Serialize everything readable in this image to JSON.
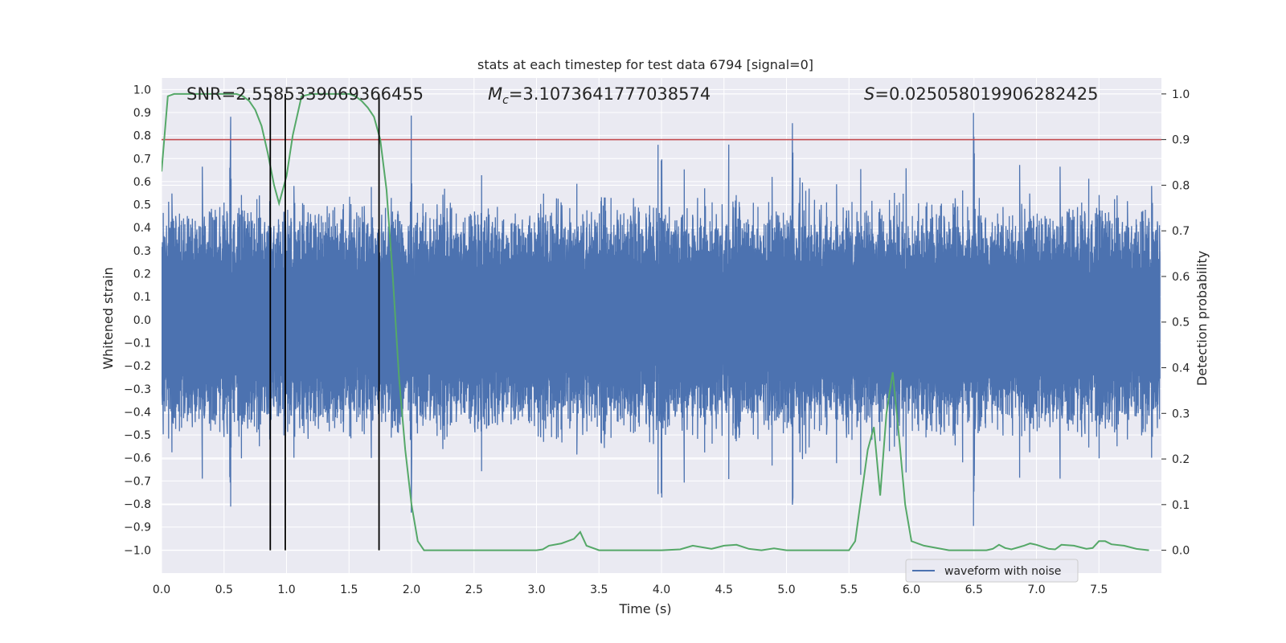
{
  "chart_data": {
    "type": "line",
    "title": "stats at each timestep for test data 6794 [signal=0]",
    "xlabel": "Time (s)",
    "ylabel": "Whitened strain",
    "ylabel_right": "Detection probability",
    "xlim": [
      0,
      8
    ],
    "ylim": [
      -1.1,
      1.05
    ],
    "ylim_right": [
      -0.05,
      1.035
    ],
    "x_ticks": [
      0.0,
      0.5,
      1.0,
      1.5,
      2.0,
      2.5,
      3.0,
      3.5,
      4.0,
      4.5,
      5.0,
      5.5,
      6.0,
      6.5,
      7.0,
      7.5
    ],
    "x_tick_labels": [
      "0.0",
      "0.5",
      "1.0",
      "1.5",
      "2.0",
      "2.5",
      "3.0",
      "3.5",
      "4.0",
      "4.5",
      "5.0",
      "5.5",
      "6.0",
      "6.5",
      "7.0",
      "7.5"
    ],
    "y_ticks": [
      1.0,
      0.9,
      0.8,
      0.7,
      0.6,
      0.5,
      0.4,
      0.3,
      0.2,
      0.1,
      0.0,
      -0.1,
      -0.2,
      -0.3,
      -0.4,
      -0.5,
      -0.6,
      -0.7,
      -0.8,
      -0.9,
      -1.0
    ],
    "y_tick_labels": [
      "1.0",
      "0.9",
      "0.8",
      "0.7",
      "0.6",
      "0.5",
      "0.4",
      "0.3",
      "0.2",
      "0.1",
      "0.0",
      "−0.1",
      "−0.2",
      "−0.3",
      "−0.4",
      "−0.5",
      "−0.6",
      "−0.7",
      "−0.8",
      "−0.9",
      "−1.0"
    ],
    "y_ticks_right": [
      1.0,
      0.9,
      0.8,
      0.7,
      0.6,
      0.5,
      0.4,
      0.3,
      0.2,
      0.1,
      0.0
    ],
    "y_tick_labels_right": [
      "1.0",
      "0.9",
      "0.8",
      "0.7",
      "0.6",
      "0.5",
      "0.4",
      "0.3",
      "0.2",
      "0.1",
      "0.0"
    ],
    "annotations": {
      "snr": "SNR=2.5585339069366455",
      "mc_symbol": "M",
      "mc_subscript": "c",
      "mc_value": "=3.1073641777038574",
      "s_symbol": "S",
      "s_value": "=0.025058019906282425"
    },
    "threshold_right": 0.9,
    "vertical_lines_x": [
      0.87,
      0.99,
      1.74
    ],
    "legend": [
      "waveform with noise"
    ],
    "legend_position": "lower-right",
    "colors": {
      "waveform": "#4c72b0",
      "probability": "#55a868",
      "threshold": "#c44e52",
      "markers": "#000000",
      "plot_bg": "#eaeaf2",
      "grid": "#ffffff"
    },
    "waveform_envelope": {
      "core_amplitude": 0.3,
      "typical_peak": 0.55,
      "max_peak_near_t": [
        0.55,
        2.0,
        4.0,
        5.05,
        6.5
      ],
      "max_peak_value": 0.93,
      "min_trough_value": -0.97
    },
    "probability_series": {
      "name": "Detection probability",
      "x": [
        0.0,
        0.05,
        0.1,
        0.2,
        0.3,
        0.4,
        0.5,
        0.6,
        0.65,
        0.7,
        0.75,
        0.8,
        0.85,
        0.9,
        0.94,
        1.0,
        1.05,
        1.12,
        1.2,
        1.3,
        1.4,
        1.5,
        1.55,
        1.6,
        1.65,
        1.7,
        1.75,
        1.8,
        1.85,
        1.9,
        1.95,
        2.0,
        2.05,
        2.1,
        2.2,
        2.5,
        2.8,
        3.0,
        3.05,
        3.1,
        3.2,
        3.3,
        3.35,
        3.4,
        3.5,
        3.7,
        4.0,
        4.15,
        4.25,
        4.4,
        4.5,
        4.6,
        4.7,
        4.8,
        4.9,
        5.0,
        5.2,
        5.3,
        5.4,
        5.5,
        5.55,
        5.6,
        5.65,
        5.7,
        5.75,
        5.8,
        5.85,
        5.9,
        5.95,
        6.0,
        6.1,
        6.3,
        6.5,
        6.6,
        6.65,
        6.7,
        6.75,
        6.8,
        6.9,
        6.95,
        7.0,
        7.1,
        7.15,
        7.2,
        7.3,
        7.4,
        7.45,
        7.5,
        7.55,
        7.6,
        7.7,
        7.8,
        7.9
      ],
      "y": [
        0.83,
        0.995,
        1.0,
        1.0,
        1.0,
        1.0,
        1.0,
        1.0,
        0.995,
        0.985,
        0.965,
        0.93,
        0.87,
        0.8,
        0.76,
        0.82,
        0.91,
        0.995,
        1.0,
        1.0,
        1.0,
        1.0,
        0.995,
        0.985,
        0.97,
        0.95,
        0.9,
        0.79,
        0.6,
        0.38,
        0.22,
        0.1,
        0.02,
        0.0,
        0.0,
        0.0,
        0.0,
        0.0,
        0.002,
        0.01,
        0.015,
        0.025,
        0.04,
        0.01,
        0.0,
        0.0,
        0.0,
        0.002,
        0.01,
        0.003,
        0.01,
        0.012,
        0.003,
        0.0,
        0.004,
        0.0,
        0.0,
        0.0,
        0.0,
        0.0,
        0.02,
        0.12,
        0.22,
        0.27,
        0.12,
        0.3,
        0.39,
        0.25,
        0.1,
        0.02,
        0.01,
        0.0,
        0.0,
        0.0,
        0.003,
        0.012,
        0.005,
        0.002,
        0.01,
        0.015,
        0.012,
        0.003,
        0.002,
        0.012,
        0.01,
        0.003,
        0.005,
        0.02,
        0.02,
        0.013,
        0.01,
        0.003,
        0.0
      ]
    }
  }
}
